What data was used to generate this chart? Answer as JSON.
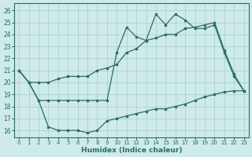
{
  "xlabel": "Humidex (Indice chaleur)",
  "bg_color": "#ceeaea",
  "grid_color": "#a8cccc",
  "line_color": "#2a6e64",
  "xlim": [
    -0.5,
    23.5
  ],
  "ylim": [
    15.4,
    26.6
  ],
  "yticks": [
    16,
    17,
    18,
    19,
    20,
    21,
    22,
    23,
    24,
    25,
    26
  ],
  "xticks": [
    0,
    1,
    2,
    3,
    4,
    5,
    6,
    7,
    8,
    9,
    10,
    11,
    12,
    13,
    14,
    15,
    16,
    17,
    18,
    19,
    20,
    21,
    22,
    23
  ],
  "series_upper_x": [
    0,
    1,
    2,
    3,
    4,
    5,
    6,
    7,
    8,
    9,
    10,
    11,
    12,
    13,
    14,
    15,
    16,
    17,
    18,
    19,
    20,
    21,
    22,
    23
  ],
  "series_upper_y": [
    21.0,
    20.0,
    20.0,
    20.0,
    20.3,
    20.5,
    20.5,
    20.5,
    21.0,
    21.2,
    21.5,
    22.5,
    22.8,
    23.5,
    23.7,
    24.0,
    24.0,
    24.5,
    24.6,
    24.8,
    25.0,
    22.7,
    20.7,
    19.3
  ],
  "series_spiky_x": [
    0,
    1,
    2,
    3,
    4,
    5,
    6,
    7,
    8,
    9,
    10,
    11,
    12,
    13,
    14,
    15,
    16,
    17,
    18,
    19,
    20,
    21,
    22,
    23
  ],
  "series_spiky_y": [
    21.0,
    20.0,
    18.5,
    18.5,
    18.5,
    18.5,
    18.5,
    18.5,
    18.5,
    18.5,
    22.5,
    24.6,
    23.8,
    23.5,
    25.7,
    24.8,
    25.7,
    25.2,
    24.5,
    24.5,
    24.8,
    22.5,
    20.5,
    19.3
  ],
  "series_lower_x": [
    0,
    1,
    2,
    3,
    4,
    5,
    6,
    7,
    8,
    9,
    10,
    11,
    12,
    13,
    14,
    15,
    16,
    17,
    18,
    19,
    20,
    21,
    22,
    23
  ],
  "series_lower_y": [
    21.0,
    20.0,
    18.5,
    16.3,
    16.0,
    16.0,
    16.0,
    15.8,
    16.0,
    16.8,
    17.0,
    17.2,
    17.4,
    17.6,
    17.8,
    17.8,
    18.0,
    18.2,
    18.5,
    18.8,
    19.0,
    19.2,
    19.3,
    19.3
  ]
}
